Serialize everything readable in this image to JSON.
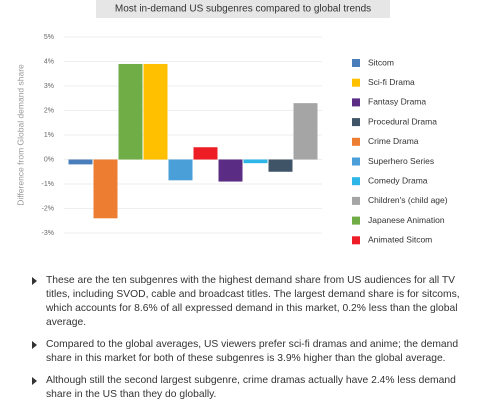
{
  "chart_data": {
    "type": "bar",
    "title": "Most in-demand US subgenres compared to global trends",
    "ylabel": "Difference from Global demand share",
    "series": [
      {
        "name": "Sitcom",
        "color": "#4a7ebb",
        "values": [
          -0.2
        ]
      },
      {
        "name": "Sci-fi Drama",
        "color": "#ffc000",
        "values": [
          3.9
        ]
      },
      {
        "name": "Fantasy Drama",
        "color": "#5b2c83",
        "values": [
          -0.9
        ]
      },
      {
        "name": "Procedural Drama",
        "color": "#3f5466",
        "values": [
          -0.5
        ]
      },
      {
        "name": "Crime Drama",
        "color": "#ed7d31",
        "values": [
          -2.4
        ]
      },
      {
        "name": "Superhero Series",
        "color": "#4a9fd8",
        "values": [
          -0.85
        ]
      },
      {
        "name": "Comedy Drama",
        "color": "#2eb6e8",
        "values": [
          -0.15
        ]
      },
      {
        "name": "Children's (child age)",
        "color": "#a5a5a5",
        "values": [
          2.3
        ]
      },
      {
        "name": "Japanese Animation",
        "color": "#70ad47",
        "values": [
          3.9
        ]
      },
      {
        "name": "Animated Sitcom",
        "color": "#ee1c25",
        "values": [
          0.5
        ]
      }
    ],
    "ylim": [
      -3,
      5
    ],
    "yticks": [
      {
        "value": 5,
        "label": "5%"
      },
      {
        "value": 4,
        "label": "4%"
      },
      {
        "value": 3,
        "label": "3%"
      },
      {
        "value": 2,
        "label": "2%"
      },
      {
        "value": 1,
        "label": "1%"
      },
      {
        "value": 0,
        "label": "0%"
      },
      {
        "value": -1,
        "label": "-1%"
      },
      {
        "value": -2,
        "label": "-2%"
      },
      {
        "value": -3,
        "label": "-3%"
      }
    ],
    "grid": true
  },
  "notes": [
    "These are the ten subgenres with the highest demand share from US audiences for all TV titles, including SVOD, cable and broadcast titles. The largest demand share is for sitcoms, which accounts for 8.6% of all expressed demand in this market, 0.2% less than the global average.",
    "Compared to the global averages, US viewers prefer sci-fi dramas and anime; the demand share in this market for both of these subgenres is 3.9% higher than the global average.",
    "Although still the second largest subgenre, crime dramas actually have 2.4% less demand share in the US than they do globally."
  ]
}
